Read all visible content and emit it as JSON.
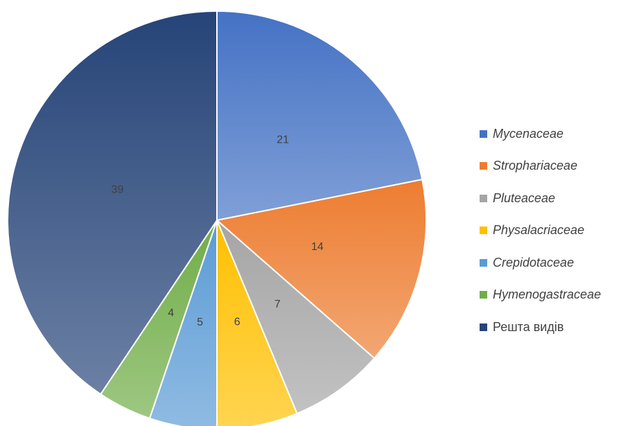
{
  "chart_data": {
    "type": "pie",
    "categories": [
      "Mycenaceae",
      "Strophariaceae",
      "Pluteaceae",
      "Physalacriaceae",
      "Crepidotaceae",
      "Hymenogastraceae",
      "Решта видів"
    ],
    "values": [
      21,
      14,
      7,
      6,
      5,
      4,
      39
    ],
    "colors": [
      "#4472c4",
      "#ed7d31",
      "#a5a5a5",
      "#ffc000",
      "#5b9bd5",
      "#70ad47",
      "#264478"
    ],
    "legend": "right"
  }
}
